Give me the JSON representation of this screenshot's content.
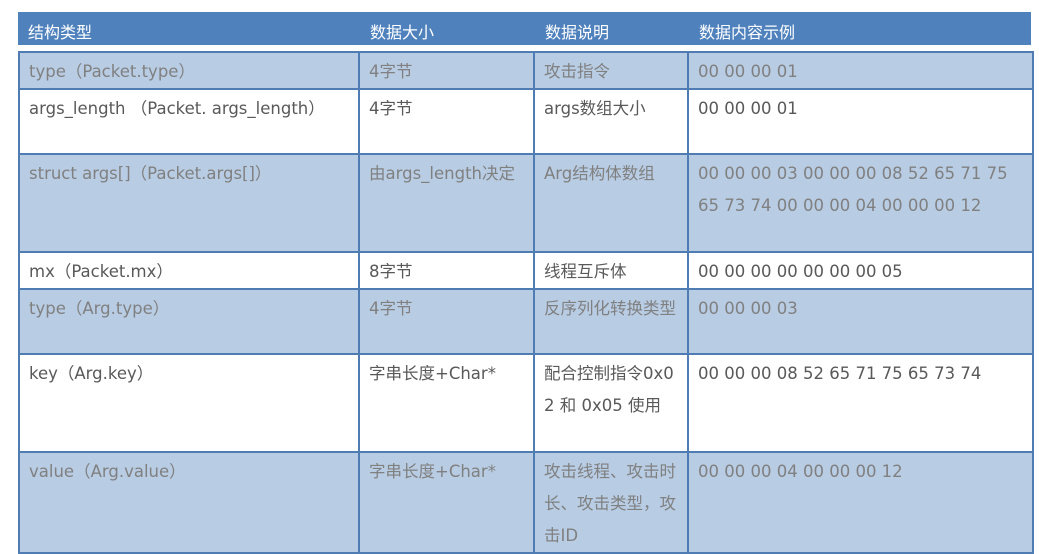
{
  "colors": {
    "header": "#4f81bd",
    "shaded_row": "#b8cce4",
    "border": "#4f7cb3"
  },
  "headers": [
    "结构类型",
    "数据大小",
    "数据说明",
    "数据内容示例"
  ],
  "rows": [
    {
      "type": "type（Packet.type）",
      "size": "4字节",
      "desc": "攻击指令",
      "example": "00 00 00 01"
    },
    {
      "type": "args_length （Packet. args_length）",
      "size": "4字节",
      "desc": "args数组大小",
      "example": "00 00 00 01"
    },
    {
      "type": "struct args[]（Packet.args[]）",
      "size": "由args_length决定",
      "desc": "Arg结构体数组",
      "example": "00 00 00 03 00 00 00 08 52 65 71 75 65 73 74 00 00 00 04 00 00 00 12"
    },
    {
      "type": "mx（Packet.mx）",
      "size": "8字节",
      "desc": "线程互斥体",
      "example": "00 00 00 00 00 00 00 05"
    },
    {
      "type": "type（Arg.type）",
      "size": "4字节",
      "desc": "反序列化转换类型",
      "example": "00 00 00 03"
    },
    {
      "type": "key（Arg.key）",
      "size": "字串长度+Char*",
      "desc": "配合控制指令0x02 和 0x05 使用",
      "example": "00 00 00 08 52 65 71 75 65 73 74"
    },
    {
      "type": "value（Arg.value）",
      "size": "字串长度+Char*",
      "desc": "攻击线程、攻击时长、攻击类型，攻击ID",
      "example": "00 00 00 04 00 00 00 12"
    }
  ]
}
